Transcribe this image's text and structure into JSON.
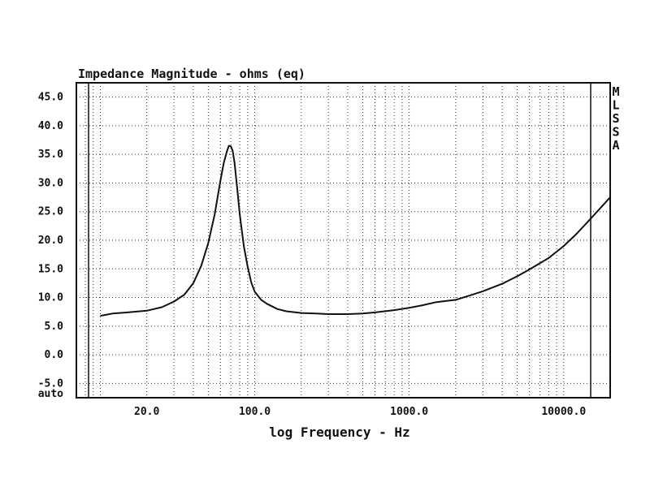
{
  "chart_data": {
    "type": "line",
    "title": "Impedance Magnitude - ohms (eq)",
    "xlabel": "log Frequency - Hz",
    "ylabel": "",
    "x_scale": "log",
    "xlim": [
      7,
      20000
    ],
    "ylim": [
      -7.5,
      47.5
    ],
    "grid": true,
    "y_ticks": [
      45.0,
      40.0,
      35.0,
      30.0,
      25.0,
      20.0,
      15.0,
      10.0,
      5.0,
      0.0,
      -5.0
    ],
    "y_tick_labels": [
      "45.0",
      "40.0",
      "35.0",
      "30.0",
      "25.0",
      "20.0",
      "15.0",
      "10.0",
      "5.0",
      "0.0",
      "-5.0"
    ],
    "y_bottom_label": "auto",
    "x_ticks": [
      20,
      100,
      1000,
      10000
    ],
    "x_tick_labels": [
      "20.0",
      "100.0",
      "1000.0",
      "10000.0"
    ],
    "side_label": [
      "M",
      "L",
      "S",
      "S",
      "A"
    ],
    "series": [
      {
        "x": [
          10,
          12,
          15,
          20,
          25,
          30,
          35,
          40,
          45,
          50,
          55,
          60,
          63,
          66,
          68,
          70,
          72,
          74,
          77,
          80,
          85,
          90,
          95,
          100,
          110,
          120,
          140,
          160,
          200,
          250,
          300,
          400,
          500,
          600,
          800,
          1000,
          1200,
          1500,
          2000,
          2500,
          3000,
          4000,
          5000,
          6000,
          8000,
          10000,
          12000,
          15000,
          20000
        ],
        "y": [
          6.8,
          7.2,
          7.4,
          7.7,
          8.3,
          9.3,
          10.5,
          12.5,
          15.5,
          19.5,
          24.5,
          30.5,
          33.5,
          35.5,
          36.5,
          36.4,
          35.6,
          33.5,
          29.0,
          24.5,
          19.0,
          15.3,
          12.6,
          11.0,
          9.6,
          8.9,
          8.0,
          7.6,
          7.3,
          7.2,
          7.1,
          7.1,
          7.2,
          7.4,
          7.8,
          8.2,
          8.6,
          9.2,
          9.6,
          10.4,
          11.1,
          12.4,
          13.7,
          14.9,
          16.9,
          19.0,
          21.0,
          23.8,
          27.5
        ]
      }
    ]
  }
}
